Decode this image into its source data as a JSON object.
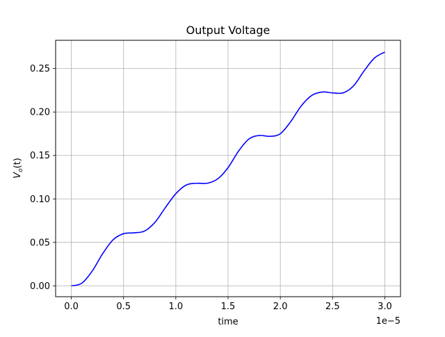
{
  "chart_data": {
    "type": "line",
    "title": "Output Voltage",
    "xlabel": "time",
    "ylabel_main": "V",
    "ylabel_sub": "o",
    "ylabel_tail": "(t)",
    "x_offset_label": "1e−5",
    "xlim": [
      -0.15,
      3.15
    ],
    "ylim": [
      -0.0125,
      0.2825
    ],
    "grid": true,
    "line_color": "#0000ff",
    "grid_color": "#b0b0b0",
    "x_ticks": [
      {
        "value": 0.0,
        "label": "0.0"
      },
      {
        "value": 0.5,
        "label": "0.5"
      },
      {
        "value": 1.0,
        "label": "1.0"
      },
      {
        "value": 1.5,
        "label": "1.5"
      },
      {
        "value": 2.0,
        "label": "2.0"
      },
      {
        "value": 2.5,
        "label": "2.5"
      },
      {
        "value": 3.0,
        "label": "3.0"
      }
    ],
    "y_ticks": [
      {
        "value": 0.0,
        "label": "0.00"
      },
      {
        "value": 0.05,
        "label": "0.05"
      },
      {
        "value": 0.1,
        "label": "0.10"
      },
      {
        "value": 0.15,
        "label": "0.15"
      },
      {
        "value": 0.2,
        "label": "0.20"
      },
      {
        "value": 0.25,
        "label": "0.25"
      }
    ],
    "series": [
      {
        "x": [
          0.0,
          0.1,
          0.2,
          0.3,
          0.4,
          0.5,
          0.6,
          0.7,
          0.8,
          0.9,
          1.0,
          1.1,
          1.2,
          1.3,
          1.4,
          1.5,
          1.6,
          1.7,
          1.8,
          1.9,
          2.0,
          2.1,
          2.2,
          2.3,
          2.4,
          2.5,
          2.6,
          2.7,
          2.8,
          2.9,
          3.0
        ],
        "y": [
          0.0,
          0.003,
          0.017,
          0.037,
          0.053,
          0.06,
          0.061,
          0.063,
          0.073,
          0.09,
          0.106,
          0.116,
          0.118,
          0.118,
          0.123,
          0.136,
          0.155,
          0.169,
          0.173,
          0.172,
          0.175,
          0.189,
          0.207,
          0.219,
          0.223,
          0.222,
          0.222,
          0.23,
          0.247,
          0.262,
          0.269
        ]
      }
    ]
  }
}
